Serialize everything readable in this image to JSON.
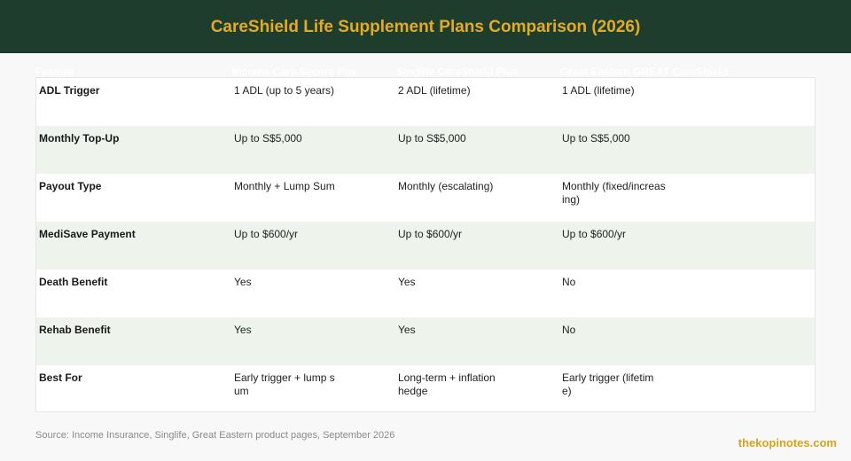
{
  "header": {
    "title": "CareShield Life Supplement Plans Comparison (2026)"
  },
  "table": {
    "columns": [
      "Feature",
      "Income Care Secure Pro",
      "Singlife CareShield Plus",
      "Great Eastern GREAT CareShield"
    ],
    "rows": [
      {
        "feature": "ADL Trigger",
        "cells": [
          "1 ADL (up to 5 years)",
          "2 ADL (lifetime)",
          "1 ADL (lifetime)"
        ]
      },
      {
        "feature": "Monthly Top-Up",
        "cells": [
          "Up to S$5,000",
          "Up to S$5,000",
          "Up to S$5,000"
        ]
      },
      {
        "feature": "Payout Type",
        "cells": [
          "Monthly + Lump Sum",
          "Monthly (escalating)",
          "Monthly (fixed/increas\ning)"
        ]
      },
      {
        "feature": "MediSave Payment",
        "cells": [
          "Up to $600/yr",
          "Up to $600/yr",
          "Up to $600/yr"
        ]
      },
      {
        "feature": "Death Benefit",
        "cells": [
          "Yes",
          "Yes",
          "No"
        ]
      },
      {
        "feature": "Rehab Benefit",
        "cells": [
          "Yes",
          "Yes",
          "No"
        ]
      },
      {
        "feature": "Best For",
        "cells": [
          "Early trigger + lump s\num",
          "Long-term + inflation\nhedge",
          "Early trigger (lifetim\ne)"
        ]
      }
    ]
  },
  "footer": {
    "source": "Source: Income Insurance, Singlife, Great Eastern product pages, September 2026",
    "brand": "thekopinotes.com"
  },
  "colors": {
    "header_bg": "#1f3d2c",
    "title": "#e3aa27",
    "row_alt": "#eef3eb",
    "brand": "#d6a31f"
  }
}
